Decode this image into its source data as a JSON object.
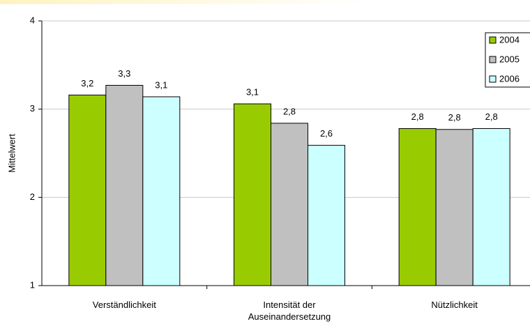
{
  "chart_data": {
    "type": "bar",
    "y_label": "Mittelwert",
    "categories": [
      "Verständlichkeit",
      "Intensität der Auseinandersetzung",
      "Nützlichkeit"
    ],
    "series": [
      {
        "name": "2004",
        "color": "#99cc00",
        "values": [
          3.16,
          3.06,
          2.78
        ],
        "value_labels": [
          "3,2",
          "3,1",
          "2,8"
        ]
      },
      {
        "name": "2005",
        "color": "#c0c0c0",
        "values": [
          3.27,
          2.84,
          2.77
        ],
        "value_labels": [
          "3,3",
          "2,8",
          "2,8"
        ]
      },
      {
        "name": "2006",
        "color": "#ccffff",
        "values": [
          3.14,
          2.59,
          2.78
        ],
        "value_labels": [
          "3,1",
          "2,6",
          "2,8"
        ]
      }
    ],
    "ylim": [
      1,
      4
    ],
    "yticks": [
      1,
      2,
      3,
      4
    ],
    "grid": true,
    "legend": "top-right"
  }
}
